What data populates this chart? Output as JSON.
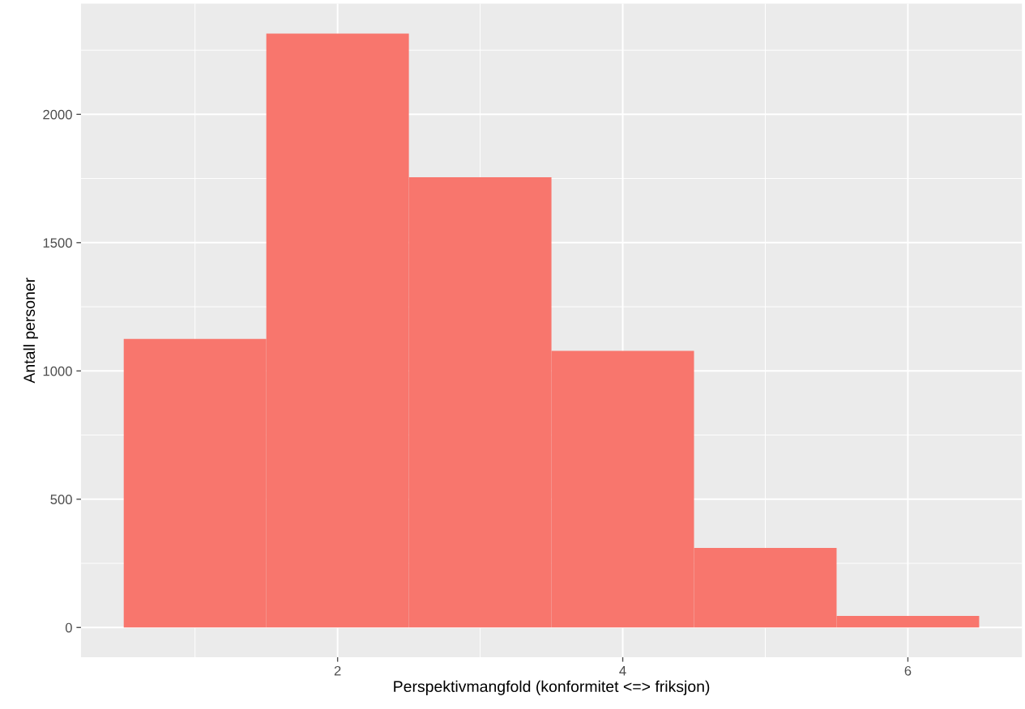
{
  "chart_data": {
    "type": "histogram",
    "xlabel": "Perspektivmangfold (konformitet <=> friksjon)",
    "ylabel": "Antall personer",
    "bins": [
      0.5,
      1.5,
      2.5,
      3.5,
      4.5,
      5.5,
      6.5
    ],
    "values": [
      1125,
      2315,
      1755,
      1078,
      310,
      45
    ],
    "color": "#f8766d",
    "xlim": [
      0.2,
      6.8
    ],
    "xticks": [
      2,
      4,
      6
    ],
    "ylim": [
      -116,
      2432
    ],
    "yticks": [
      0,
      500,
      1000,
      1500,
      2000
    ],
    "grid": true
  }
}
